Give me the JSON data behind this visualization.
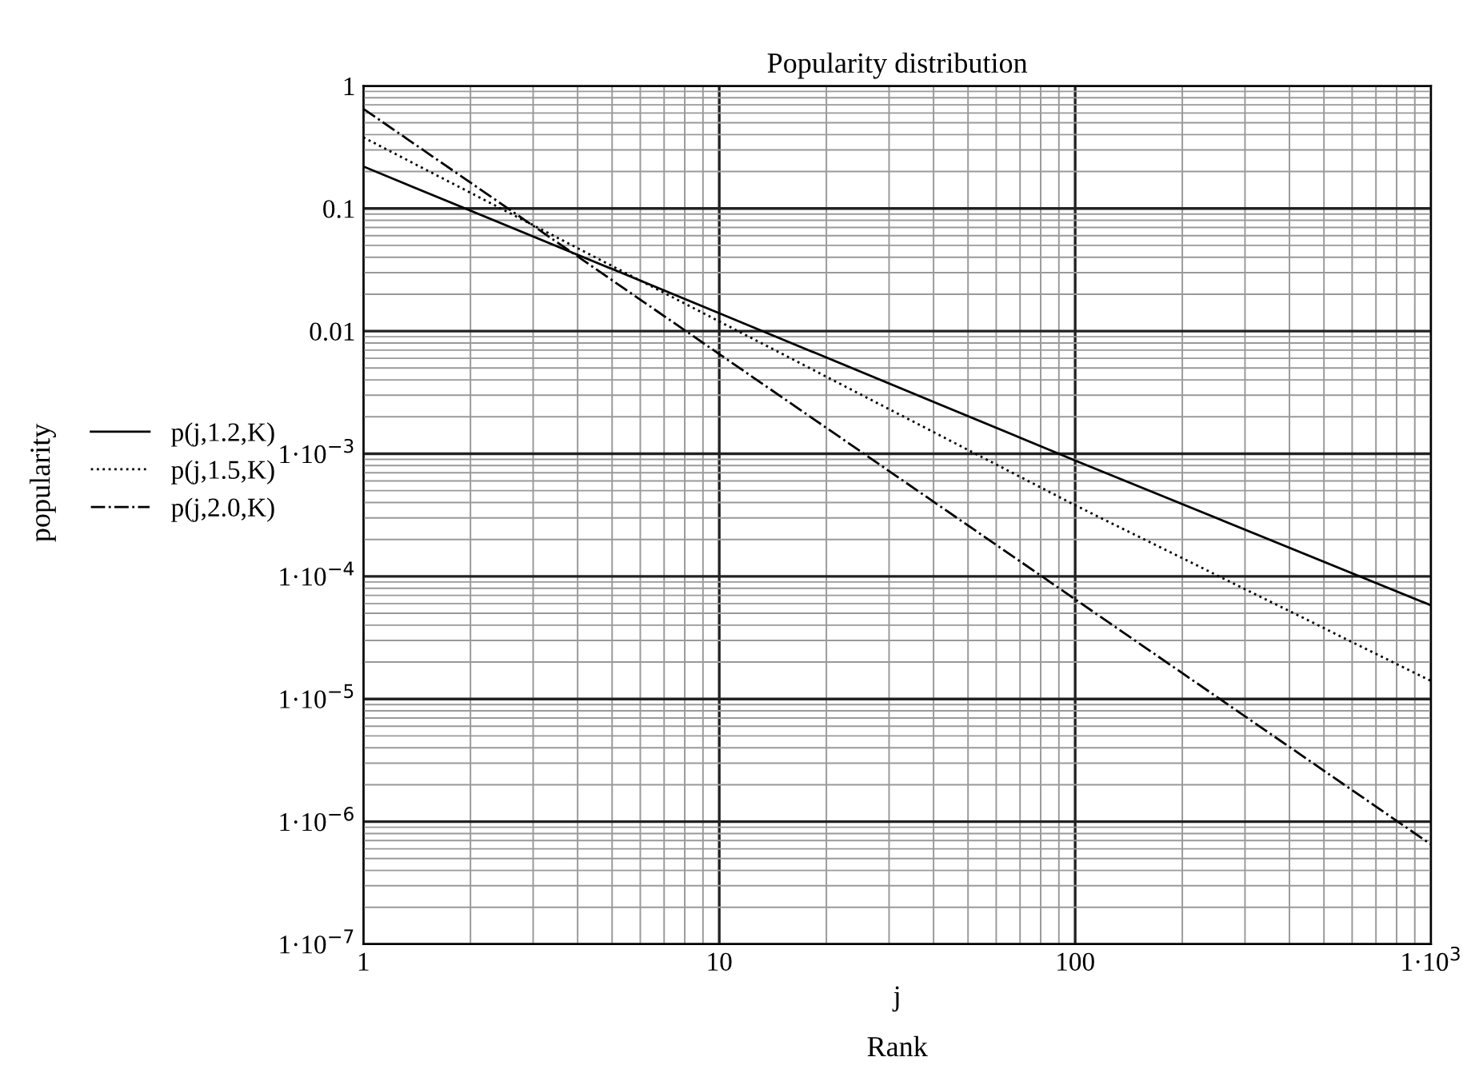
{
  "chart_data": {
    "type": "line",
    "title": "Popularity distribution",
    "xlabel": "j",
    "annotations": [
      "popularity",
      "Rank"
    ],
    "log": "xy",
    "grid": true,
    "legend": "left",
    "marker": "none",
    "xlim": [
      1,
      1000
    ],
    "ylim": [
      1e-07,
      1
    ],
    "xticks": [
      1,
      10,
      100,
      {
        "value": 1000,
        "label": "1·10$^{3}$"
      }
    ],
    "yticks": [
      {
        "value": 1e-07,
        "label": "1·10$^{−7}$"
      },
      {
        "value": 1e-06,
        "label": "1·10$^{−6}$"
      },
      {
        "value": 1e-05,
        "label": "1·10$^{−5}$"
      },
      {
        "value": 0.0001,
        "label": "1·10$^{−4}$"
      },
      {
        "value": 0.001,
        "label": "1·10$^{−3}$"
      },
      0.01,
      0.1,
      1
    ],
    "series": [
      {
        "name": "p(j,1.2,K)",
        "color": "#000000",
        "line_style": "solid",
        "x": [
          1,
          10,
          100,
          1000
        ],
        "values": [
          0.22,
          0.014,
          0.00088,
          5.8e-05
        ]
      },
      {
        "name": "p(j,1.5,K)",
        "color": "#000000",
        "line_style": "dotted",
        "x": [
          1,
          10,
          100,
          1000
        ],
        "values": [
          0.38,
          0.012,
          0.00038,
          1.4e-05
        ]
      },
      {
        "name": "p(j,2.0,K)",
        "color": "#000000",
        "line_style": "dashdot",
        "x": [
          1,
          10,
          100,
          1000
        ],
        "values": [
          0.65,
          0.0065,
          6.5e-05,
          6.5e-07
        ]
      }
    ]
  }
}
